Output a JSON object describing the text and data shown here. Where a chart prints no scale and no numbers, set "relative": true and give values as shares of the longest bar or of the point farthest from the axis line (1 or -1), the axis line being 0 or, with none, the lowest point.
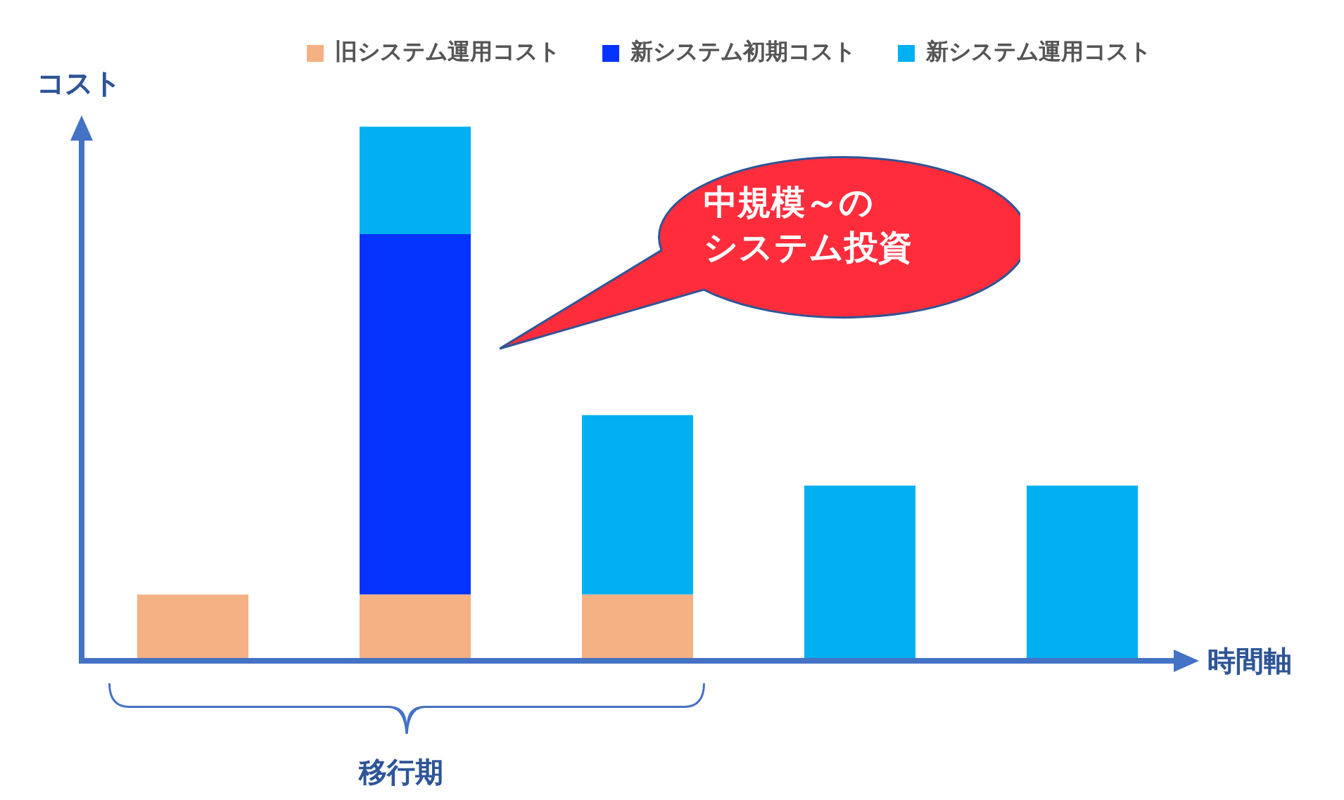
{
  "chart_data": {
    "type": "bar",
    "stacked": true,
    "relative": true,
    "xlabel": "時間軸",
    "ylabel": "コスト",
    "legend": "top",
    "categories": [
      null,
      null,
      null,
      null,
      null
    ],
    "series": [
      {
        "name": "旧システム運用コスト",
        "color": "#f4b183",
        "values": [
          0.124,
          0.124,
          0.124,
          null,
          null
        ]
      },
      {
        "name": "新システム初期コスト",
        "color": "#0433ff",
        "values": [
          null,
          0.675,
          null,
          null,
          null
        ]
      },
      {
        "name": "新システム運用コスト",
        "color": "#00b0f0",
        "values": [
          null,
          0.201,
          0.336,
          0.328,
          0.328
        ]
      }
    ],
    "annotations": [
      "中規模～の",
      "システム投資",
      "移行期"
    ]
  }
}
